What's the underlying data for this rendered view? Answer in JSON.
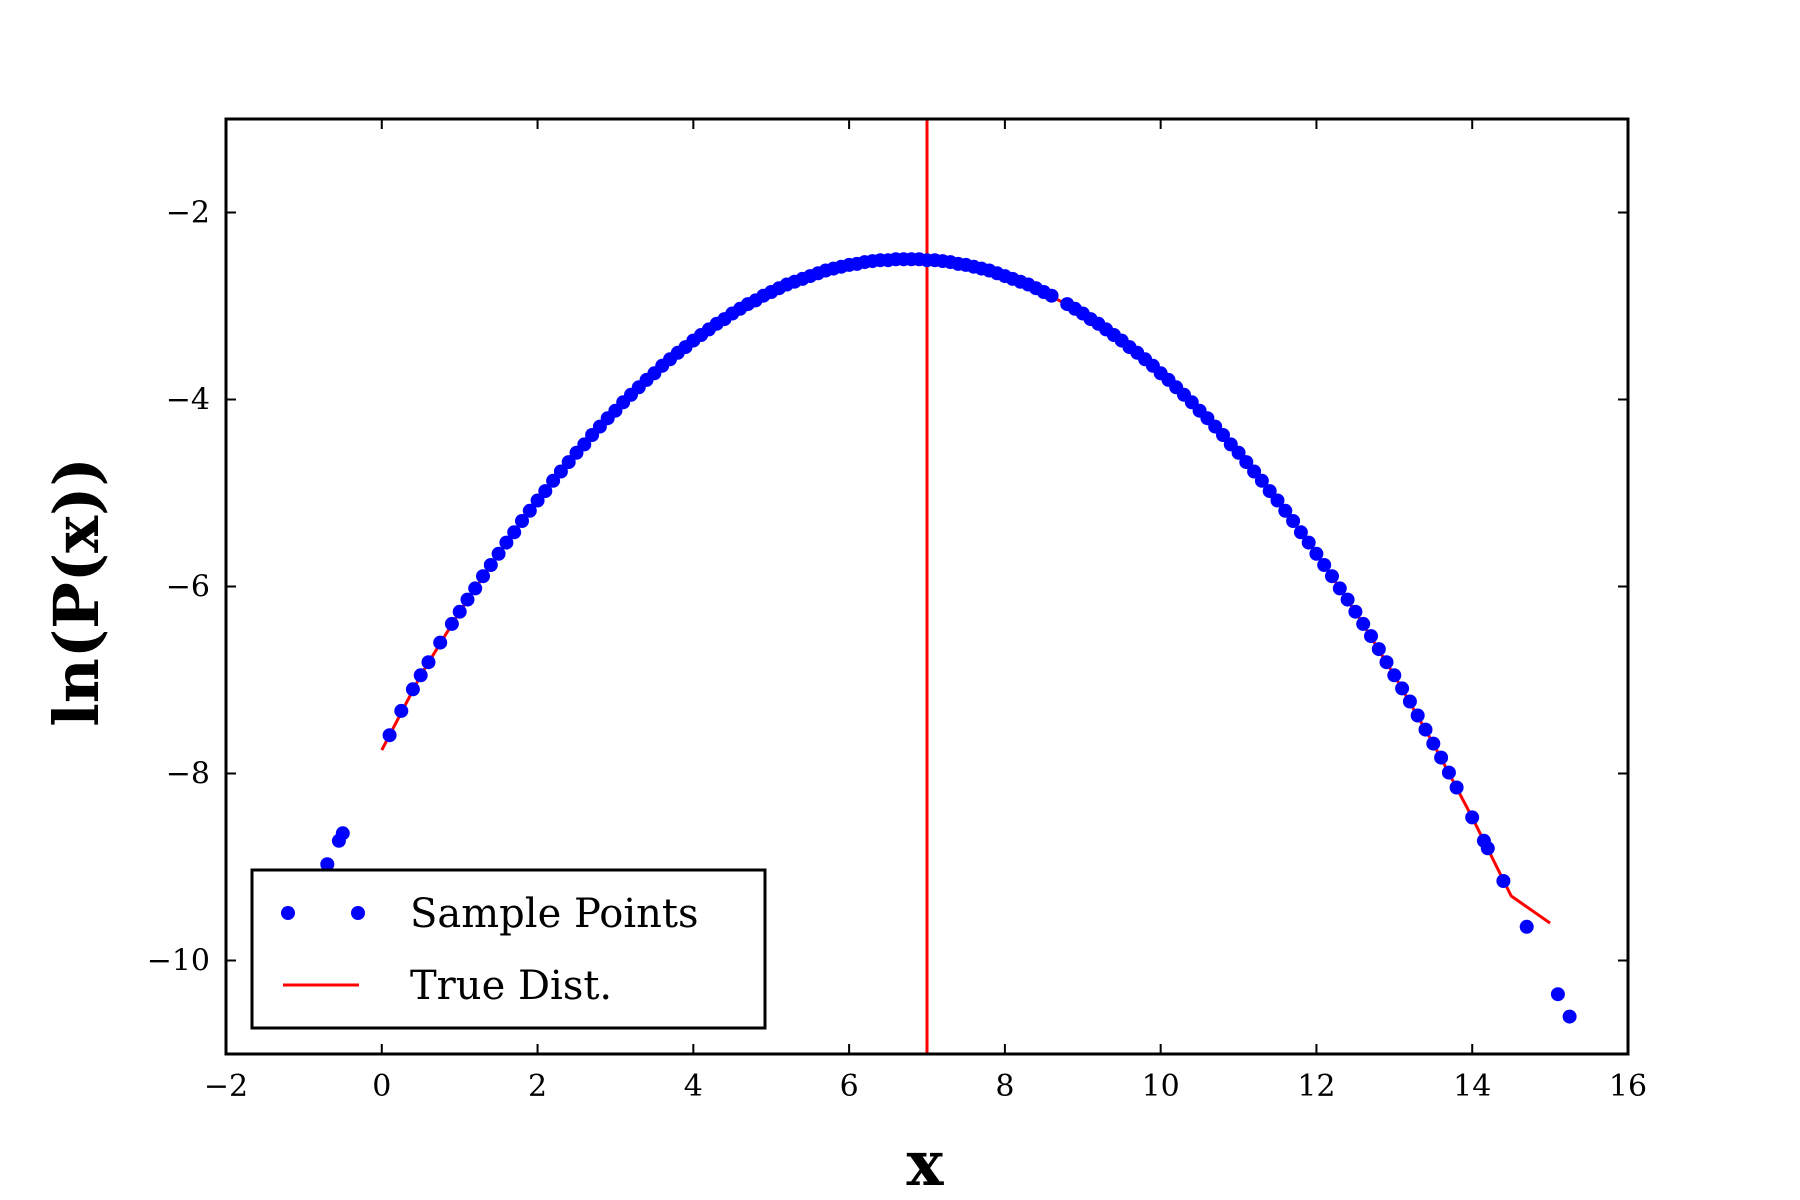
{
  "chart_data": {
    "type": "scatter",
    "xlabel": "x",
    "ylabel": "ln(P(x))",
    "xlim": [
      -2,
      16
    ],
    "ylim": [
      -11,
      -1
    ],
    "xticks": [
      -2,
      0,
      2,
      4,
      6,
      8,
      10,
      12,
      14,
      16
    ],
    "yticks": [
      -2,
      -4,
      -6,
      -8,
      -10
    ],
    "grid": false,
    "legend_position": "lower-left",
    "series": [
      {
        "name": "Sample Points",
        "kind": "points",
        "color": "#0000ff",
        "x": [
          -0.7,
          -0.55,
          -0.5,
          0.1,
          0.25,
          0.4,
          0.5,
          0.6,
          0.75,
          0.9,
          1.0,
          1.1,
          1.2,
          1.3,
          1.4,
          1.5,
          1.6,
          1.7,
          1.8,
          1.9,
          2.0,
          2.1,
          2.2,
          2.3,
          2.4,
          2.5,
          2.6,
          2.7,
          2.8,
          2.9,
          3.0,
          3.1,
          3.2,
          3.3,
          3.4,
          3.5,
          3.6,
          3.7,
          3.8,
          3.9,
          4.0,
          4.1,
          4.2,
          4.3,
          4.4,
          4.5,
          4.6,
          4.7,
          4.8,
          4.9,
          5.0,
          5.1,
          5.2,
          5.3,
          5.4,
          5.5,
          5.6,
          5.7,
          5.8,
          5.9,
          6.0,
          6.1,
          6.2,
          6.3,
          6.4,
          6.5,
          6.6,
          6.7,
          6.8,
          6.9,
          7.0,
          7.1,
          7.2,
          7.3,
          7.4,
          7.5,
          7.6,
          7.7,
          7.8,
          7.9,
          8.0,
          8.1,
          8.2,
          8.3,
          8.4,
          8.5,
          8.6,
          8.8,
          8.9,
          9.0,
          9.1,
          9.2,
          9.3,
          9.4,
          9.5,
          9.6,
          9.7,
          9.8,
          9.9,
          10.0,
          10.1,
          10.2,
          10.3,
          10.4,
          10.5,
          10.6,
          10.7,
          10.8,
          10.9,
          11.0,
          11.1,
          11.2,
          11.3,
          11.4,
          11.5,
          11.6,
          11.7,
          11.8,
          11.9,
          12.0,
          12.1,
          12.2,
          12.3,
          12.4,
          12.5,
          12.6,
          12.7,
          12.8,
          12.9,
          13.0,
          13.1,
          13.2,
          13.3,
          13.4,
          13.5,
          13.6,
          13.7,
          13.8,
          14.0,
          14.15,
          14.2,
          14.4,
          14.7,
          15.1,
          15.25
        ],
        "y": [
          -8.97,
          -8.72,
          -8.64,
          -7.59,
          -7.33,
          -7.1,
          -6.95,
          -6.81,
          -6.6,
          -6.4,
          -6.27,
          -6.14,
          -6.02,
          -5.89,
          -5.77,
          -5.65,
          -5.53,
          -5.42,
          -5.3,
          -5.19,
          -5.08,
          -4.98,
          -4.87,
          -4.77,
          -4.67,
          -4.57,
          -4.48,
          -4.38,
          -4.29,
          -4.2,
          -4.12,
          -4.03,
          -3.95,
          -3.87,
          -3.79,
          -3.72,
          -3.64,
          -3.57,
          -3.5,
          -3.44,
          -3.37,
          -3.31,
          -3.25,
          -3.19,
          -3.14,
          -3.08,
          -3.03,
          -2.98,
          -2.94,
          -2.89,
          -2.85,
          -2.81,
          -2.77,
          -2.74,
          -2.71,
          -2.68,
          -2.65,
          -2.62,
          -2.6,
          -2.58,
          -2.56,
          -2.55,
          -2.53,
          -2.52,
          -2.51,
          -2.51,
          -2.5,
          -2.5,
          -2.5,
          -2.5,
          -2.51,
          -2.51,
          -2.52,
          -2.53,
          -2.55,
          -2.56,
          -2.58,
          -2.6,
          -2.62,
          -2.65,
          -2.68,
          -2.71,
          -2.74,
          -2.77,
          -2.81,
          -2.85,
          -2.89,
          -2.98,
          -3.03,
          -3.08,
          -3.14,
          -3.19,
          -3.25,
          -3.31,
          -3.37,
          -3.44,
          -3.5,
          -3.57,
          -3.64,
          -3.72,
          -3.79,
          -3.87,
          -3.95,
          -4.03,
          -4.12,
          -4.2,
          -4.29,
          -4.38,
          -4.48,
          -4.57,
          -4.67,
          -4.77,
          -4.87,
          -4.98,
          -5.08,
          -5.19,
          -5.3,
          -5.42,
          -5.53,
          -5.65,
          -5.77,
          -5.89,
          -6.02,
          -6.14,
          -6.27,
          -6.4,
          -6.53,
          -6.67,
          -6.81,
          -6.95,
          -7.09,
          -7.23,
          -7.38,
          -7.53,
          -7.68,
          -7.83,
          -7.99,
          -8.15,
          -8.47,
          -8.72,
          -8.8,
          -9.15,
          -9.64,
          -10.36,
          -10.6
        ]
      },
      {
        "name": "True Dist.",
        "kind": "curve",
        "color": "#ff0000",
        "curve_x": [
          0.0,
          0.5,
          1.0,
          1.5,
          2.0,
          2.5,
          3.0,
          3.5,
          4.0,
          4.5,
          5.0,
          5.5,
          6.0,
          6.5,
          6.85,
          7.0,
          7.5,
          8.0,
          8.5,
          9.0,
          9.5,
          10.0,
          10.5,
          11.0,
          11.5,
          12.0,
          12.5,
          13.0,
          13.5,
          14.0,
          14.5,
          15.0
        ],
        "curve_y": [
          -7.75,
          -6.95,
          -6.27,
          -5.65,
          -5.08,
          -4.57,
          -4.12,
          -3.72,
          -3.37,
          -3.08,
          -2.85,
          -2.68,
          -2.56,
          -2.51,
          -2.5,
          -2.51,
          -2.56,
          -2.68,
          -2.85,
          -3.08,
          -3.37,
          -3.72,
          -4.12,
          -4.57,
          -5.08,
          -5.65,
          -6.27,
          -6.95,
          -7.68,
          -8.47,
          -9.31,
          -9.6
        ]
      }
    ],
    "vertical_line": {
      "x": 7.0,
      "color": "#ff0000"
    }
  }
}
